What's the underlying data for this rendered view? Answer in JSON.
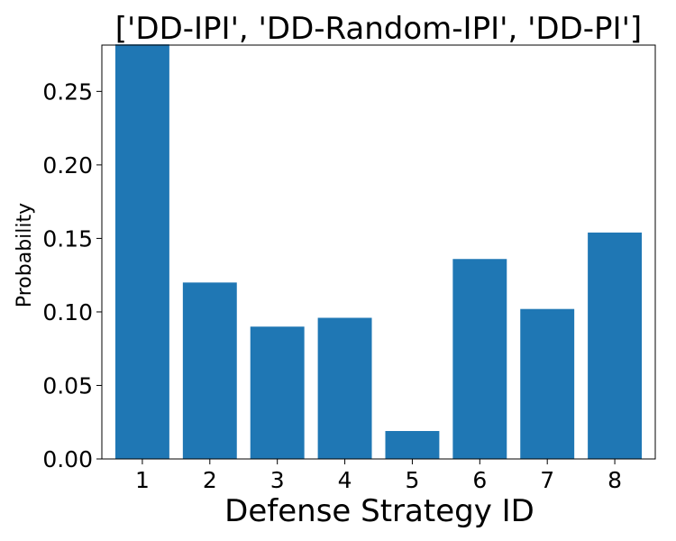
{
  "chart_data": {
    "type": "bar",
    "title": "['DD-IPI', 'DD-Random-IPI', 'DD-PI']",
    "xlabel": "Defense Strategy ID",
    "ylabel": "Probability",
    "categories": [
      "1",
      "2",
      "3",
      "4",
      "5",
      "6",
      "7",
      "8"
    ],
    "values": [
      0.282,
      0.12,
      0.09,
      0.096,
      0.019,
      0.136,
      0.102,
      0.154
    ],
    "ylim": [
      0,
      0.2815
    ],
    "yticks": [
      0.0,
      0.05,
      0.1,
      0.15,
      0.2,
      0.25
    ],
    "ytick_labels": [
      "0.00",
      "0.05",
      "0.10",
      "0.15",
      "0.20",
      "0.25"
    ],
    "grid": false,
    "legend": "none",
    "bar_color": "#1f77b4"
  }
}
